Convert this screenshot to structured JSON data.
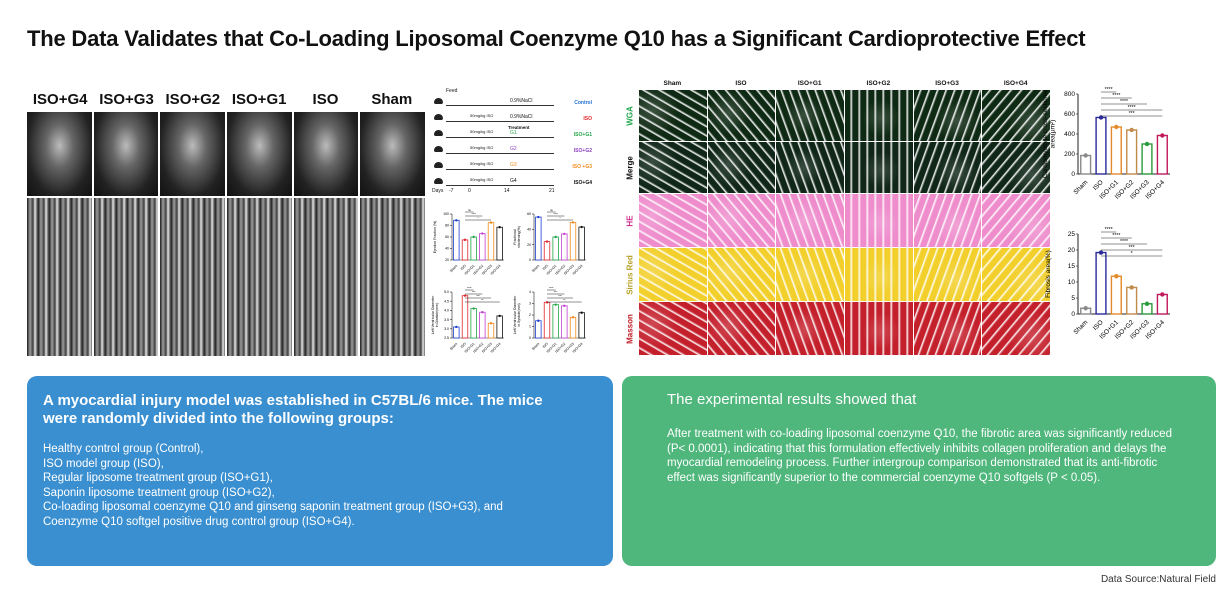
{
  "title": "The Data Validates that Co-Loading Liposomal Coenzyme Q10 has a Significant Cardioprotective Effect",
  "echo": {
    "labels": [
      "ISO+G4",
      "ISO+G3",
      "ISO+G2",
      "ISO+G1",
      "ISO",
      "Sham"
    ]
  },
  "protocol": {
    "feed_label": "Feed",
    "rows": [
      {
        "dose": "",
        "treatment": "0.9%NaCl",
        "group": "Control",
        "color": "#1f6fd1"
      },
      {
        "dose": "50mg/kg ISO",
        "treatment": "0.9%NaCl",
        "group": "ISO",
        "color": "#e0262b"
      },
      {
        "dose": "50mg/kg ISO",
        "treatment": "G1",
        "group": "ISO+G1",
        "color": "#23a548"
      },
      {
        "dose": "50mg/kg ISO",
        "treatment": "G2",
        "group": "ISO+G2",
        "color": "#8d3fc2"
      },
      {
        "dose": "50mg/kg ISO",
        "treatment": "G3",
        "group": "ISO +G3",
        "color": "#f08a1c"
      },
      {
        "dose": "50mg/kg ISO",
        "treatment": "G4",
        "group": "ISO+G4",
        "color": "#111111"
      }
    ],
    "treatment_header": "Treatment",
    "days_label": "Days",
    "days": [
      "-7",
      "0",
      "14",
      "21"
    ]
  },
  "histology": {
    "columns": [
      "Sham",
      "ISO",
      "ISO+G1",
      "ISO+G2",
      "ISO+G3",
      "ISO+G4"
    ],
    "rows": [
      {
        "label": "WGA",
        "label_color": "#1fa64a",
        "tissue_color": "#0f2a14"
      },
      {
        "label": "Merge",
        "label_color": "#111111",
        "tissue_color": "#0f2618"
      },
      {
        "label": "HE",
        "label_color": "#d0308f",
        "tissue_color": "#ee8ccc"
      },
      {
        "label": "Sirius Red",
        "label_color": "#b8a22a",
        "tissue_color": "#f2cf2a"
      },
      {
        "label": "Masson",
        "label_color": "#c0202a",
        "tissue_color": "#c4202c"
      }
    ]
  },
  "chart_data": [
    {
      "id": "ef",
      "type": "bar",
      "ylabel": "Ejection Fraction (%)",
      "categories": [
        "Sham",
        "ISO",
        "ISO+G1",
        "ISO+G2",
        "ISO+G3",
        "ISO+G4"
      ],
      "values": [
        89,
        55,
        60,
        66,
        85,
        77
      ],
      "ylim": [
        20,
        100
      ],
      "yticks": [
        "20",
        "40",
        "60",
        "80",
        "100"
      ],
      "colors": [
        "#1f3fd1",
        "#e0262b",
        "#23a548",
        "#c23fd0",
        "#f08a1c",
        "#111111"
      ],
      "annotations": [
        "ns",
        "****",
        "*"
      ]
    },
    {
      "id": "fs",
      "type": "bar",
      "ylabel": "Fractional shortening(%)",
      "categories": [
        "Sham",
        "ISO",
        "ISO+G1",
        "ISO+G2",
        "ISO+G3",
        "ISO+G4"
      ],
      "values": [
        56,
        24,
        30,
        34,
        49,
        43
      ],
      "ylim": [
        0,
        60
      ],
      "yticks": [
        "0",
        "20",
        "40",
        "60"
      ],
      "colors": [
        "#1f3fd1",
        "#e0262b",
        "#23a548",
        "#c23fd0",
        "#f08a1c",
        "#111111"
      ],
      "annotations": [
        "ns",
        "****",
        "*"
      ]
    },
    {
      "id": "lvidd",
      "type": "bar",
      "ylabel": "Left Ventricular Diameter in Diastole(mm)",
      "categories": [
        "Sham",
        "ISO",
        "ISO+G1",
        "ISO+G2",
        "ISO+G3",
        "ISO+G4"
      ],
      "values": [
        3.1,
        4.8,
        4.1,
        3.9,
        3.3,
        3.7
      ],
      "ylim": [
        2.5,
        5.0
      ],
      "yticks": [
        "2.5",
        "3.0",
        "3.5",
        "4.0",
        "4.5",
        "5.0"
      ],
      "colors": [
        "#1f3fd1",
        "#e0262b",
        "#23a548",
        "#c23fd0",
        "#f08a1c",
        "#111111"
      ],
      "annotations": [
        "****",
        "***",
        "***",
        "**"
      ]
    },
    {
      "id": "lvids",
      "type": "bar",
      "ylabel": "Left Ventricular Diameter in Systole(mm)",
      "categories": [
        "Sham",
        "ISO",
        "ISO+G1",
        "ISO+G2",
        "ISO+G3",
        "ISO+G4"
      ],
      "values": [
        1.5,
        3.1,
        2.9,
        2.8,
        1.8,
        2.2
      ],
      "ylim": [
        0,
        4
      ],
      "yticks": [
        "0",
        "1",
        "2",
        "3",
        "4"
      ],
      "colors": [
        "#1f3fd1",
        "#e0262b",
        "#23a548",
        "#c23fd0",
        "#f08a1c",
        "#111111"
      ],
      "annotations": [
        "****",
        "***",
        "***",
        "**"
      ]
    },
    {
      "id": "csa",
      "type": "bar",
      "ylabel": "Cardiomyocyte cross-sectional area(μm²)",
      "categories": [
        "Sham",
        "ISO",
        "ISO+G1",
        "ISO+G2",
        "ISO+G3",
        "ISO+G4"
      ],
      "values": [
        185,
        565,
        470,
        440,
        300,
        385
      ],
      "ylim": [
        0,
        800
      ],
      "yticks": [
        "0",
        "200",
        "400",
        "600",
        "800"
      ],
      "colors": [
        "#8a8a8a",
        "#2a2a9a",
        "#e58a2a",
        "#c08a4a",
        "#2a9a3a",
        "#c0185a"
      ],
      "annotations": [
        "****",
        "****",
        "****",
        "****",
        "***"
      ]
    },
    {
      "id": "fibrosis",
      "type": "bar",
      "ylabel": "Fibrosis area(%)",
      "categories": [
        "Sham",
        "ISO",
        "ISO+G1",
        "ISO+G2",
        "ISO+G3",
        "ISO+G4"
      ],
      "values": [
        1.8,
        19.2,
        11.8,
        8.3,
        3.2,
        6.1
      ],
      "ylim": [
        0,
        25
      ],
      "yticks": [
        "0",
        "5",
        "10",
        "15",
        "20",
        "25"
      ],
      "colors": [
        "#8a8a8a",
        "#2a2a9a",
        "#e58a2a",
        "#c08a4a",
        "#2a9a3a",
        "#c0185a"
      ],
      "annotations": [
        "****",
        "****",
        "****",
        "***",
        "*"
      ]
    }
  ],
  "left_box": {
    "heading": "A myocardial injury model was established in C57BL/6 mice. The mice were randomly divided into the following groups:",
    "lines": [
      "Healthy control group (Control),",
      "ISO model group (ISO),",
      "Regular liposome treatment group (ISO+G1),",
      "Saponin liposome treatment group (ISO+G2),",
      "Co-loading liposomal coenzyme Q10 and ginseng saponin treatment group (ISO+G3), and Coenzyme Q10 softgel positive drug control group (ISO+G4)."
    ]
  },
  "right_box": {
    "heading": "The experimental results showed that",
    "body": "After treatment with co-loading liposomal coenzyme Q10, the fibrotic area was significantly reduced (P< 0.0001), indicating that this formulation effectively inhibits collagen proliferation and delays the myocardial remodeling process. Further intergroup comparison demonstrated that its anti-fibrotic effect was significantly superior to the commercial coenzyme Q10 softgels (P < 0.05)."
  },
  "footer": "Data Source:Natural Field",
  "colors": {
    "blue_box": "#3a8fd1",
    "green_box": "#4fb67c"
  }
}
